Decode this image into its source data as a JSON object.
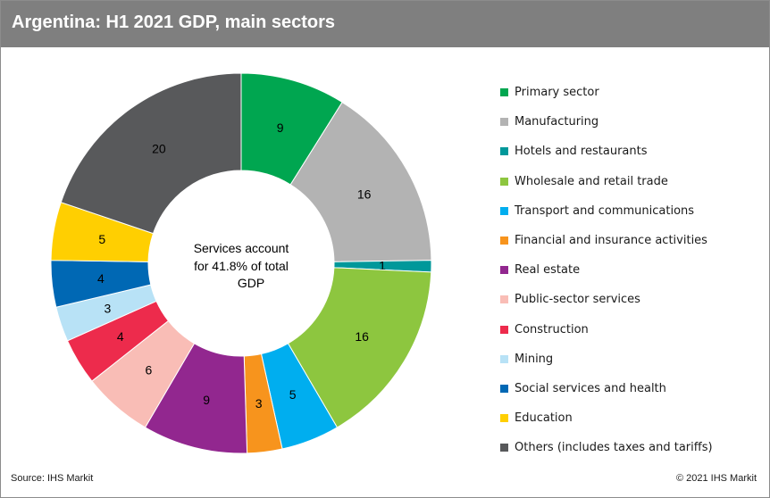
{
  "title": "Argentina: H1 2021 GDP, main sectors",
  "source": "Source: IHS Markit",
  "copyright": "© 2021 IHS Markit",
  "chart_data": {
    "type": "pie",
    "variant": "donut",
    "title": "Argentina: H1 2021 GDP, main sectors",
    "center_text": [
      "Services account",
      "for 41.8% of total",
      "GDP"
    ],
    "legend_position": "right",
    "categories": [
      "Primary sector",
      "Manufacturing",
      "Hotels and restaurants",
      "Wholesale and retail trade",
      "Transport and communications",
      "Financial and insurance activities",
      "Real estate",
      "Public-sector services",
      "Construction",
      "Mining",
      "Social services and health",
      "Education",
      "Others (includes taxes and tariffs)"
    ],
    "values": [
      9,
      16,
      1,
      16,
      5,
      3,
      9,
      6,
      4,
      3,
      4,
      5,
      20
    ],
    "colors": [
      "#00a650",
      "#b3b3b3",
      "#00989a",
      "#8dc63f",
      "#00aeef",
      "#f7941d",
      "#92278f",
      "#f9bdb6",
      "#ed2b4c",
      "#b8e2f6",
      "#0068b4",
      "#ffcf01",
      "#58595b"
    ]
  }
}
